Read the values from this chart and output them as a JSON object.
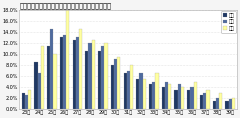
{
  "title": "＜図表１＞転職を考え始めた年齢（総合，男女別）",
  "categories": [
    "23歳",
    "24歳",
    "25歳",
    "26歳",
    "27歳",
    "28歳",
    "29歳",
    "30歳",
    "31歳",
    "32歳",
    "33歳",
    "34歳",
    "35歳",
    "36歳",
    "37歳",
    "38歳",
    "39歳"
  ],
  "series": {
    "総合": [
      3.0,
      8.5,
      11.5,
      13.0,
      12.5,
      10.5,
      10.5,
      8.0,
      6.5,
      5.5,
      4.5,
      4.0,
      3.5,
      3.5,
      2.5,
      1.5,
      1.5
    ],
    "男性": [
      2.5,
      6.5,
      14.5,
      13.5,
      13.0,
      12.0,
      11.5,
      9.0,
      7.0,
      6.5,
      5.0,
      5.0,
      4.5,
      4.0,
      3.0,
      2.0,
      1.8
    ],
    "女性": [
      3.5,
      11.5,
      10.0,
      18.0,
      14.5,
      12.5,
      12.0,
      9.5,
      8.0,
      5.5,
      6.5,
      4.5,
      4.0,
      5.0,
      3.5,
      3.0,
      2.0
    ]
  },
  "colors": {
    "総合": "#1f3864",
    "男性": "#4f6b9f",
    "女性": "#ffffa0"
  },
  "ylim": [
    0,
    18
  ],
  "yticks": [
    0,
    2,
    4,
    6,
    8,
    10,
    12,
    14,
    16,
    18
  ],
  "ytick_labels": [
    "0.0%",
    "2.0%",
    "4.0%",
    "6.0%",
    "8.0%",
    "10.0%",
    "12.0%",
    "14.0%",
    "16.0%",
    "18.0%"
  ],
  "background_color": "#f5f5f5",
  "plot_bg": "#ffffff",
  "grid_color": "#cccccc",
  "title_fontsize": 4.8,
  "tick_fontsize": 3.5,
  "legend_fontsize": 3.5,
  "bar_width": 0.25
}
